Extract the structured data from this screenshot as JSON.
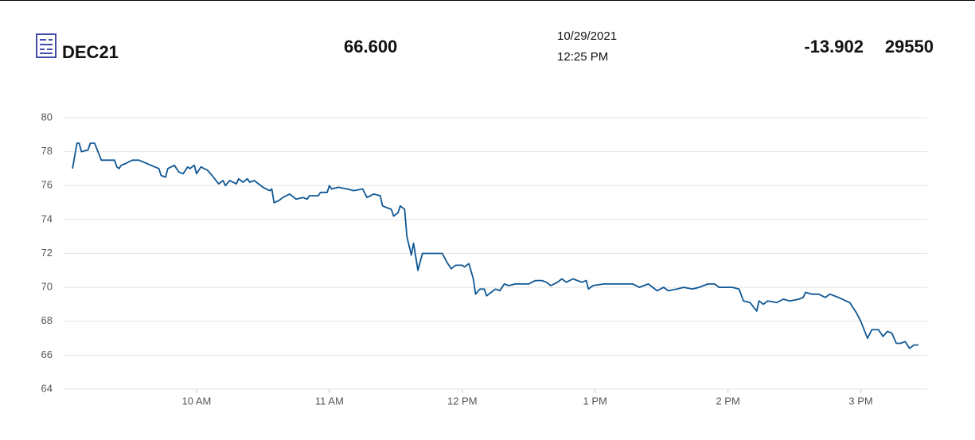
{
  "header": {
    "symbol": "DEC21",
    "price": "66.600",
    "date": "10/29/2021",
    "time": "12:25 PM",
    "change": "-13.902",
    "volume": "29550"
  },
  "chart_data": {
    "type": "line",
    "color": "#0f5794",
    "grid": true,
    "x": [
      544,
      546,
      547,
      548,
      551,
      552,
      554,
      557,
      563,
      564,
      565,
      566,
      568,
      571,
      574,
      583,
      584,
      586,
      587,
      590,
      592,
      594,
      596,
      597,
      599,
      600,
      602,
      605,
      607,
      610,
      612,
      613,
      615,
      618,
      619,
      621,
      623,
      624,
      626,
      630,
      633,
      634,
      635,
      637,
      639,
      642,
      645,
      648,
      650,
      651,
      655,
      656,
      659,
      660,
      661,
      664,
      668,
      671,
      675,
      677,
      680,
      683,
      684,
      686,
      688,
      689,
      691,
      692,
      694,
      695,
      697,
      698,
      700,
      702,
      705,
      711,
      713,
      715,
      717,
      720,
      721,
      723,
      725,
      726,
      728,
      730,
      731,
      733,
      735,
      737,
      739,
      741,
      744,
      747,
      750,
      753,
      756,
      758,
      760,
      763,
      765,
      767,
      770,
      774,
      776,
      777,
      779,
      784,
      788,
      791,
      797,
      800,
      804,
      808,
      811,
      813,
      817,
      820,
      824,
      827,
      831,
      834,
      836,
      842,
      845,
      847,
      850,
      853,
      854,
      856,
      858,
      862,
      865,
      868,
      872,
      874,
      875,
      878,
      881,
      884,
      886,
      890,
      895,
      898,
      900,
      903,
      905,
      908,
      910,
      912,
      914,
      916,
      918,
      920,
      922,
      924,
      926
    ],
    "values": [
      77.0,
      78.5,
      78.5,
      78.0,
      78.1,
      78.5,
      78.5,
      77.5,
      77.5,
      77.1,
      77.0,
      77.2,
      77.3,
      77.5,
      77.5,
      77.0,
      76.6,
      76.5,
      77.0,
      77.2,
      76.8,
      76.7,
      77.1,
      77.0,
      77.2,
      76.7,
      77.1,
      76.9,
      76.6,
      76.1,
      76.3,
      76.0,
      76.3,
      76.1,
      76.4,
      76.2,
      76.4,
      76.2,
      76.3,
      75.9,
      75.7,
      75.8,
      75.0,
      75.1,
      75.3,
      75.5,
      75.2,
      75.3,
      75.2,
      75.4,
      75.4,
      75.6,
      75.6,
      76.0,
      75.8,
      75.9,
      75.8,
      75.7,
      75.8,
      75.3,
      75.5,
      75.4,
      74.8,
      74.7,
      74.6,
      74.2,
      74.4,
      74.8,
      74.6,
      73.0,
      71.9,
      72.6,
      71.0,
      72.0,
      72.0,
      72.0,
      71.5,
      71.1,
      71.3,
      71.3,
      71.2,
      71.4,
      70.5,
      69.6,
      69.9,
      69.9,
      69.5,
      69.7,
      69.9,
      69.8,
      70.2,
      70.1,
      70.2,
      70.2,
      70.2,
      70.4,
      70.4,
      70.3,
      70.1,
      70.3,
      70.5,
      70.3,
      70.5,
      70.3,
      70.4,
      69.9,
      70.1,
      70.2,
      70.2,
      70.2,
      70.2,
      70.0,
      70.2,
      69.8,
      70.0,
      69.8,
      69.9,
      70.0,
      69.9,
      70.0,
      70.2,
      70.2,
      70.0,
      70.0,
      69.9,
      69.2,
      69.1,
      68.6,
      69.2,
      69.0,
      69.2,
      69.1,
      69.3,
      69.2,
      69.3,
      69.4,
      69.7,
      69.6,
      69.6,
      69.4,
      69.6,
      69.4,
      69.1,
      68.5,
      68.0,
      67.0,
      67.5,
      67.5,
      67.1,
      67.4,
      67.3,
      66.7,
      66.7,
      66.8,
      66.4,
      66.6,
      66.6
    ],
    "xlim": [
      540,
      930
    ],
    "xticks": [
      {
        "value": 600,
        "label": "10 AM"
      },
      {
        "value": 660,
        "label": "11 AM"
      },
      {
        "value": 720,
        "label": "12 PM"
      },
      {
        "value": 780,
        "label": "1 PM"
      },
      {
        "value": 840,
        "label": "2 PM"
      },
      {
        "value": 900,
        "label": "3 PM"
      }
    ],
    "ylim": [
      64,
      80
    ],
    "yticks": [
      64,
      66,
      68,
      70,
      72,
      74,
      76,
      78,
      80
    ]
  }
}
